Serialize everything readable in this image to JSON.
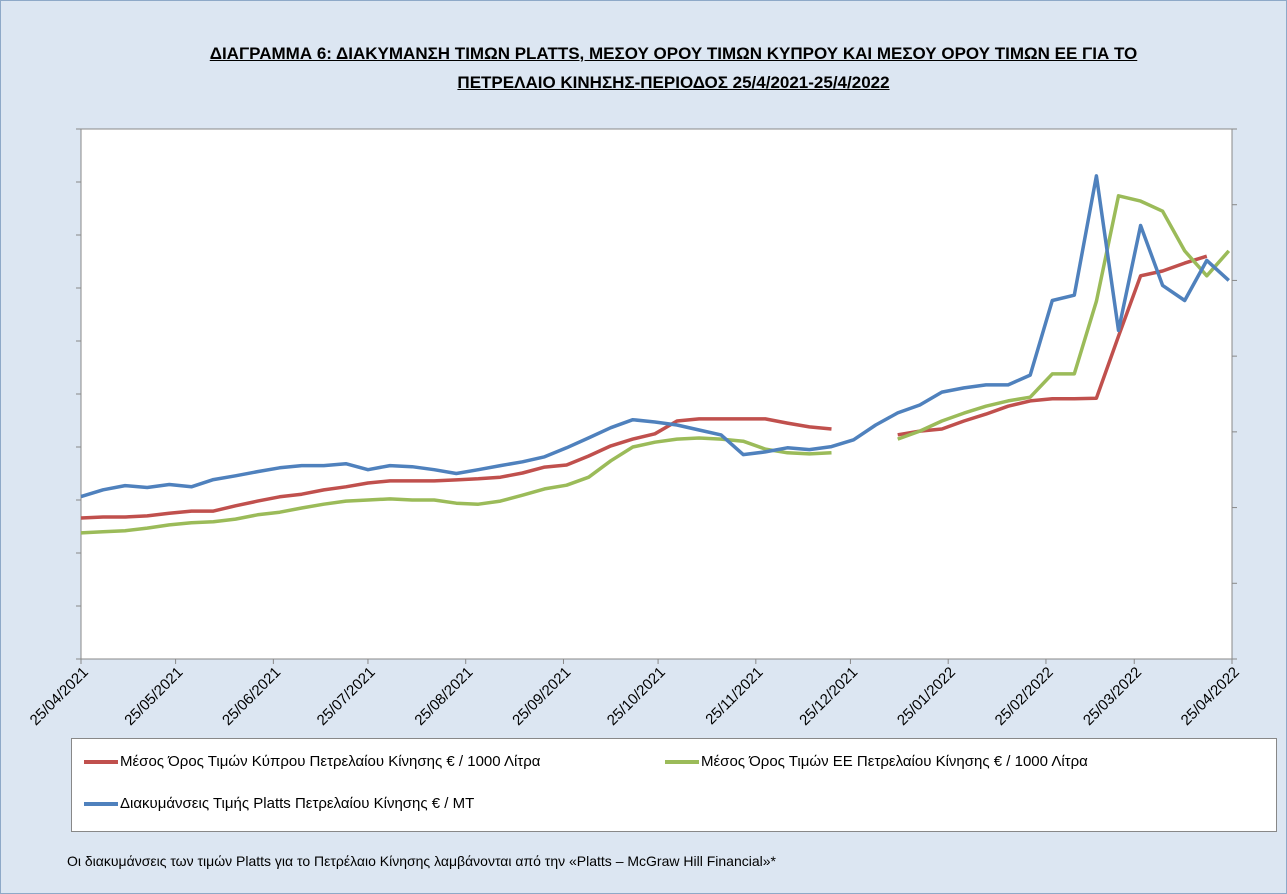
{
  "chart_data": {
    "type": "line",
    "title": "ΔΙΑΓΡΑΜΜΑ 6: ΔΙΑΚΥΜΑΝΣΗ ΤΙΜΩΝ PLATTS, ΜΕΣΟΥ ΟΡΟΥ ΤΙΜΩΝ ΚΥΠΡΟΥ ΚΑΙ ΜΕΣΟΥ ΟΡΟΥ ΤΙΜΩΝ ΕΕ ΓΙΑ ΤΟ ΠΕΤΡΕΛΑΙΟ ΚΙΝΗΣΗΣ-ΠΕΡΙΟΔΟΣ 25/4/2021-25/4/2022",
    "x": [
      "25/04/2021",
      "02/05/2021",
      "09/05/2021",
      "16/05/2021",
      "23/05/2021",
      "30/05/2021",
      "06/06/2021",
      "13/06/2021",
      "20/06/2021",
      "27/06/2021",
      "04/07/2021",
      "11/07/2021",
      "18/07/2021",
      "25/07/2021",
      "01/08/2021",
      "08/08/2021",
      "15/08/2021",
      "22/08/2021",
      "29/08/2021",
      "05/09/2021",
      "12/09/2021",
      "19/09/2021",
      "26/09/2021",
      "03/10/2021",
      "10/10/2021",
      "17/10/2021",
      "24/10/2021",
      "31/10/2021",
      "07/11/2021",
      "14/11/2021",
      "21/11/2021",
      "28/11/2021",
      "05/12/2021",
      "12/12/2021",
      "19/12/2021",
      "26/12/2021",
      "02/01/2022",
      "09/01/2022",
      "16/01/2022",
      "23/01/2022",
      "30/01/2022",
      "06/02/2022",
      "13/02/2022",
      "20/02/2022",
      "27/02/2022",
      "06/03/2022",
      "13/03/2022",
      "20/03/2022",
      "27/03/2022",
      "03/04/2022",
      "10/04/2022",
      "17/04/2022",
      "24/04/2022"
    ],
    "xlim": [
      "25/04/2021",
      "25/04/2022"
    ],
    "xticks": [
      "25/04/2021",
      "25/05/2021",
      "25/06/2021",
      "25/07/2021",
      "25/08/2021",
      "25/09/2021",
      "25/10/2021",
      "25/11/2021",
      "25/12/2021",
      "25/01/2022",
      "25/02/2022",
      "25/03/2022",
      "25/04/2022"
    ],
    "ylim": [
      0,
      1000
    ],
    "yticks": [
      0,
      100,
      200,
      300,
      400,
      500,
      600,
      700,
      800,
      900,
      1000
    ],
    "y2lim": [
      0,
      1400
    ],
    "y2ticks": [
      0,
      200,
      400,
      600,
      800,
      1000,
      1200,
      1400
    ],
    "series": [
      {
        "name": "Μέσος Όρος Τιμών Κύπρου Πετρελαίου Κίνησης  € / 1000 Λίτρα",
        "color": "#c0504d",
        "values": [
          266,
          268,
          268,
          270,
          275,
          279,
          279,
          289,
          298,
          306,
          311,
          319,
          325,
          332,
          336,
          336,
          336,
          338,
          340,
          343,
          351,
          362,
          366,
          383,
          402,
          415,
          425,
          449,
          453,
          453,
          453,
          453,
          445,
          438,
          434,
          null,
          null,
          423,
          430,
          434,
          449,
          462,
          477,
          487,
          491,
          491,
          492,
          609,
          723,
          732,
          747,
          760,
          null
        ]
      },
      {
        "name": "Μέσος Όρος Τιμών ΕΕ Πετρελαίου Κίνησης  € / 1000 Λίτρα",
        "color": "#9bbb59",
        "values": [
          238,
          240,
          242,
          247,
          253,
          257,
          259,
          264,
          272,
          277,
          285,
          292,
          298,
          300,
          302,
          300,
          300,
          294,
          292,
          298,
          309,
          321,
          328,
          343,
          374,
          400,
          409,
          415,
          417,
          415,
          411,
          396,
          389,
          387,
          389,
          null,
          null,
          415,
          430,
          449,
          464,
          477,
          487,
          494,
          538,
          538,
          675,
          874,
          864,
          845,
          770,
          723,
          770
        ]
      },
      {
        "name": "Διακυμάνσεις Τιμής Platts Πετρελαίου Κίνησης € / MT",
        "color": "#4f81bd",
        "axis": "y2",
        "values": [
          429,
          447,
          458,
          453,
          461,
          455,
          474,
          484,
          495,
          505,
          511,
          511,
          516,
          500,
          511,
          508,
          500,
          490,
          500,
          511,
          521,
          534,
          558,
          584,
          611,
          632,
          626,
          618,
          605,
          592,
          540,
          547,
          558,
          553,
          561,
          579,
          618,
          650,
          671,
          705,
          716,
          724,
          724,
          750,
          947,
          961,
          1276,
          868,
          1145,
          987,
          947,
          1053,
          1000
        ]
      }
    ],
    "footnote": "Οι διακυμάνσεις των τιμών Platts για το Πετρέλαιο Κίνησης λαμβάνονται από την «Platts – McGraw Hill Financial»*"
  }
}
